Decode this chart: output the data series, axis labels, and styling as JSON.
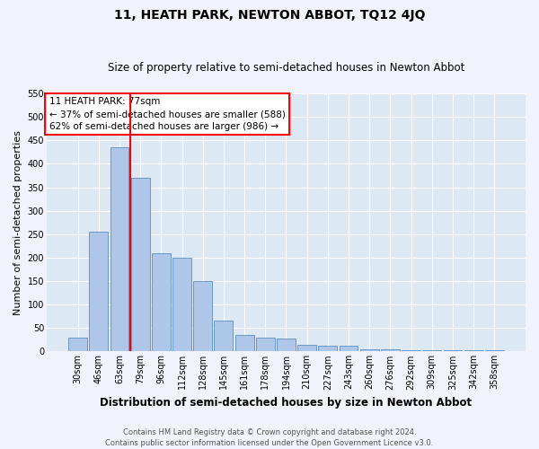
{
  "title": "11, HEATH PARK, NEWTON ABBOT, TQ12 4JQ",
  "subtitle": "Size of property relative to semi-detached houses in Newton Abbot",
  "xlabel": "Distribution of semi-detached houses by size in Newton Abbot",
  "ylabel": "Number of semi-detached properties",
  "categories": [
    "30sqm",
    "46sqm",
    "63sqm",
    "79sqm",
    "96sqm",
    "112sqm",
    "128sqm",
    "145sqm",
    "161sqm",
    "178sqm",
    "194sqm",
    "210sqm",
    "227sqm",
    "243sqm",
    "260sqm",
    "276sqm",
    "292sqm",
    "309sqm",
    "325sqm",
    "342sqm",
    "358sqm"
  ],
  "values": [
    30,
    255,
    435,
    370,
    210,
    200,
    150,
    65,
    35,
    30,
    28,
    15,
    12,
    12,
    5,
    5,
    3,
    3,
    2,
    2,
    2
  ],
  "bar_color": "#aec6e8",
  "bar_edge_color": "#5a8fc0",
  "bg_color": "#dde8f5",
  "grid_color": "#ffffff",
  "red_line_x": 2.5,
  "annotation_title": "11 HEATH PARK: 77sqm",
  "annotation_line1": "← 37% of semi-detached houses are smaller (588)",
  "annotation_line2": "62% of semi-detached houses are larger (986) →",
  "footer_line1": "Contains HM Land Registry data © Crown copyright and database right 2024.",
  "footer_line2": "Contains public sector information licensed under the Open Government Licence v3.0.",
  "ylim": [
    0,
    550
  ],
  "yticks": [
    0,
    50,
    100,
    150,
    200,
    250,
    300,
    350,
    400,
    450,
    500,
    550
  ],
  "title_fontsize": 10,
  "subtitle_fontsize": 8.5,
  "ylabel_fontsize": 8,
  "xlabel_fontsize": 8.5,
  "tick_fontsize": 7,
  "annotation_fontsize": 7.5,
  "footer_fontsize": 6
}
